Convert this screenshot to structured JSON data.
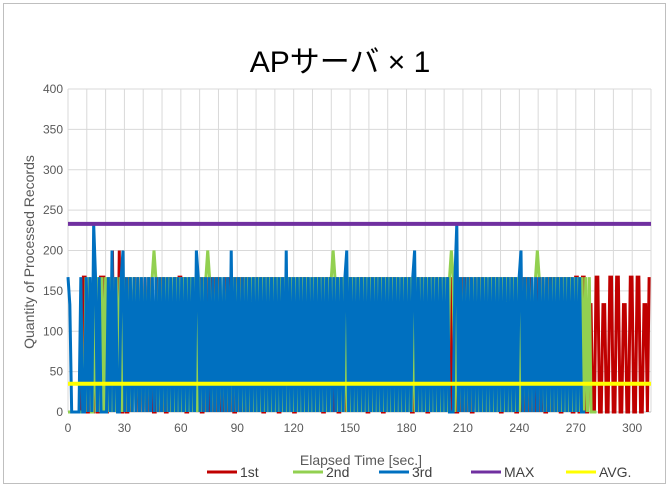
{
  "chart_data": {
    "type": "line",
    "title": "APサーバ × 1",
    "xlabel": "Elapsed Time [sec.]",
    "ylabel": "Quantity of Processed Records",
    "xlim": [
      0,
      310
    ],
    "ylim": [
      0,
      400
    ],
    "xticks": [
      "0",
      "30",
      "60",
      "90",
      "120",
      "150",
      "180",
      "210",
      "240",
      "270",
      "300"
    ],
    "yticks": [
      "0",
      "50",
      "100",
      "150",
      "200",
      "250",
      "300",
      "350",
      "400"
    ],
    "grid": true,
    "legend_position": "bottom",
    "series": [
      {
        "name": "1st",
        "color": "#c00000",
        "end_x": 309,
        "values": [
          0,
          0,
          0,
          0,
          0,
          0,
          0,
          0,
          0,
          167,
          167,
          0,
          0,
          133,
          0,
          0,
          133,
          0,
          0,
          167,
          167,
          167,
          0,
          0,
          167,
          0,
          200,
          0,
          167,
          0,
          200,
          0,
          0,
          167,
          0,
          0,
          167,
          0,
          133,
          167,
          0,
          167,
          0,
          133,
          0,
          167,
          0,
          167,
          0,
          167,
          0,
          0,
          167,
          0,
          167,
          0,
          167,
          0,
          0,
          167,
          0,
          133,
          0,
          167,
          0,
          167,
          167,
          0,
          167,
          0,
          0,
          167,
          0,
          167,
          0,
          133,
          0,
          167,
          0,
          0,
          167,
          0,
          167,
          0,
          167,
          0,
          167,
          0,
          167,
          0,
          133,
          0,
          167,
          0,
          167,
          0,
          167,
          0,
          0,
          167,
          0,
          167,
          0,
          167,
          0,
          167,
          0,
          133,
          0,
          167,
          0,
          167,
          0,
          167,
          0,
          0,
          167,
          0,
          167,
          0,
          167,
          0,
          167,
          0,
          0,
          167,
          0,
          167,
          0,
          167,
          0,
          167,
          0,
          0,
          167,
          0,
          167,
          0,
          167,
          0,
          167,
          0,
          133,
          0,
          167,
          0,
          167,
          0,
          167,
          0,
          0,
          167,
          0,
          167,
          0,
          167,
          0,
          167,
          0,
          0,
          167,
          0,
          167,
          0,
          167,
          0,
          167,
          0,
          133,
          0,
          167,
          0,
          167,
          0,
          167,
          0,
          0,
          167,
          0,
          167,
          0,
          167,
          0,
          167,
          0,
          0,
          167,
          0,
          167,
          0,
          167,
          0,
          167,
          0,
          133,
          0,
          167,
          0,
          167,
          0,
          167,
          0,
          0,
          167,
          0,
          167,
          0,
          167,
          0,
          167,
          0,
          0,
          167,
          0,
          167,
          0,
          167,
          0,
          167,
          0,
          133,
          0,
          167,
          0,
          167,
          0,
          167,
          0,
          0,
          167,
          0,
          167,
          0,
          167,
          0,
          167,
          0,
          0,
          167,
          0,
          167,
          0,
          167,
          0,
          167,
          0,
          133,
          0,
          167,
          0,
          167,
          0,
          167,
          0,
          0,
          167,
          0,
          167,
          0,
          167,
          0,
          167,
          0,
          0,
          167,
          0,
          167,
          0,
          167,
          0,
          167,
          0,
          133,
          0,
          167,
          0,
          167,
          0,
          167,
          0,
          0,
          167,
          0,
          167,
          0,
          167,
          0,
          167,
          0,
          0,
          167,
          0,
          167,
          0,
          167,
          0,
          0,
          167,
          167,
          0,
          0,
          167,
          167,
          0,
          0,
          133,
          133,
          0,
          0,
          167,
          167,
          0,
          0,
          133,
          133,
          0,
          0,
          167,
          167,
          0,
          0,
          167,
          167,
          0,
          0,
          133,
          133,
          0,
          0,
          167,
          167,
          0,
          0,
          167,
          167,
          0,
          0,
          133,
          133,
          0,
          167
        ]
      },
      {
        "name": "2nd",
        "color": "#92d050",
        "end_x": 281,
        "values": [
          0,
          0,
          0,
          0,
          0,
          0,
          0,
          0,
          0,
          0,
          167,
          0,
          167,
          0,
          0,
          167,
          0,
          167,
          0,
          167,
          0,
          167,
          0,
          167,
          0,
          167,
          0,
          167,
          0,
          167,
          0,
          167,
          0,
          167,
          0,
          167,
          0,
          167,
          0,
          167,
          0,
          167,
          0,
          167,
          0,
          167,
          0,
          167,
          200,
          167,
          0,
          167,
          0,
          167,
          0,
          167,
          0,
          167,
          0,
          167,
          0,
          167,
          0,
          167,
          0,
          167,
          0,
          167,
          0,
          167,
          0,
          167,
          0,
          167,
          0,
          167,
          0,
          167,
          200,
          167,
          0,
          167,
          0,
          167,
          0,
          167,
          0,
          167,
          0,
          167,
          0,
          167,
          0,
          167,
          0,
          167,
          0,
          167,
          0,
          167,
          0,
          167,
          0,
          167,
          0,
          167,
          0,
          167,
          0,
          167,
          0,
          167,
          0,
          167,
          0,
          167,
          0,
          167,
          0,
          167,
          0,
          167,
          0,
          167,
          0,
          167,
          0,
          167,
          0,
          167,
          0,
          167,
          0,
          167,
          0,
          167,
          0,
          167,
          0,
          167,
          0,
          167,
          0,
          167,
          0,
          167,
          0,
          167,
          200,
          167,
          0,
          167,
          0,
          167,
          0,
          167,
          0,
          167,
          0,
          167,
          0,
          167,
          0,
          167,
          0,
          167,
          0,
          167,
          0,
          167,
          0,
          167,
          0,
          167,
          0,
          167,
          0,
          167,
          0,
          167,
          0,
          167,
          0,
          167,
          0,
          167,
          0,
          167,
          0,
          167,
          0,
          167,
          0,
          167,
          0,
          167,
          0,
          167,
          0,
          167,
          0,
          167,
          0,
          167,
          0,
          167,
          0,
          167,
          0,
          167,
          0,
          167,
          0,
          167,
          200,
          167,
          0,
          167,
          0,
          167,
          0,
          167,
          0,
          167,
          0,
          167,
          0,
          167,
          0,
          167,
          0,
          167,
          0,
          167,
          0,
          167,
          0,
          167,
          0,
          167,
          0,
          167,
          0,
          167,
          0,
          167,
          0,
          167,
          0,
          167,
          0,
          167,
          0,
          167,
          0,
          167,
          0,
          167,
          0,
          167,
          0,
          167,
          200,
          167,
          0,
          167,
          0,
          167,
          0,
          167,
          0,
          167,
          0,
          167,
          0,
          167,
          0,
          167,
          0,
          167,
          0,
          167,
          0,
          167,
          0,
          167,
          0,
          167,
          0,
          167,
          0,
          167,
          0,
          0,
          0,
          0
        ]
      },
      {
        "name": "3rd",
        "color": "#0070c0",
        "end_x": 275,
        "values": [
          167,
          133,
          0,
          0,
          0,
          0,
          0,
          167,
          0,
          0,
          167,
          0,
          167,
          0,
          233,
          167,
          0,
          167,
          0,
          0,
          0,
          0,
          167,
          0,
          200,
          0,
          167,
          0,
          0,
          167,
          200,
          0,
          167,
          0,
          167,
          0,
          167,
          0,
          167,
          0,
          167,
          0,
          167,
          0,
          167,
          0,
          167,
          0,
          167,
          0,
          167,
          0,
          167,
          0,
          167,
          0,
          167,
          0,
          167,
          0,
          167,
          0,
          167,
          0,
          167,
          0,
          167,
          0,
          167,
          0,
          200,
          167,
          0,
          167,
          0,
          167,
          0,
          167,
          0,
          167,
          0,
          167,
          0,
          167,
          0,
          167,
          0,
          167,
          0,
          200,
          0,
          167,
          0,
          167,
          0,
          167,
          0,
          167,
          0,
          167,
          0,
          167,
          0,
          167,
          0,
          167,
          0,
          167,
          0,
          167,
          0,
          167,
          0,
          167,
          0,
          167,
          0,
          167,
          0,
          200,
          0,
          167,
          0,
          167,
          0,
          167,
          0,
          167,
          0,
          167,
          0,
          167,
          0,
          167,
          0,
          167,
          0,
          167,
          0,
          167,
          0,
          167,
          0,
          167,
          0,
          167,
          0,
          167,
          0,
          167,
          0,
          167,
          200,
          0,
          167,
          0,
          167,
          0,
          167,
          0,
          167,
          0,
          167,
          0,
          167,
          0,
          167,
          0,
          167,
          0,
          167,
          0,
          167,
          0,
          167,
          0,
          167,
          0,
          167,
          0,
          167,
          0,
          167,
          0,
          167,
          0,
          167,
          0,
          167,
          200,
          0,
          167,
          0,
          167,
          0,
          167,
          0,
          167,
          0,
          167,
          0,
          167,
          0,
          167,
          0,
          167,
          0,
          167,
          0,
          0,
          0,
          167,
          233,
          0,
          167,
          0,
          167,
          0,
          167,
          0,
          167,
          0,
          167,
          0,
          167,
          0,
          167,
          0,
          167,
          0,
          167,
          0,
          167,
          0,
          167,
          0,
          167,
          0,
          167,
          0,
          167,
          0,
          167,
          0,
          167,
          0,
          167,
          200,
          0,
          167,
          0,
          167,
          0,
          167,
          0,
          167,
          0,
          167,
          0,
          167,
          0,
          167,
          0,
          167,
          0,
          167,
          0,
          167,
          0,
          167,
          0,
          167,
          0,
          167,
          0,
          167,
          0,
          167,
          0,
          167,
          0,
          0,
          0
        ]
      },
      {
        "name": "MAX",
        "color": "#7030a0",
        "constant": 233,
        "end_x": 310
      },
      {
        "name": "AVG.",
        "color": "#ffff00",
        "constant": 35,
        "end_x": 310
      }
    ]
  }
}
